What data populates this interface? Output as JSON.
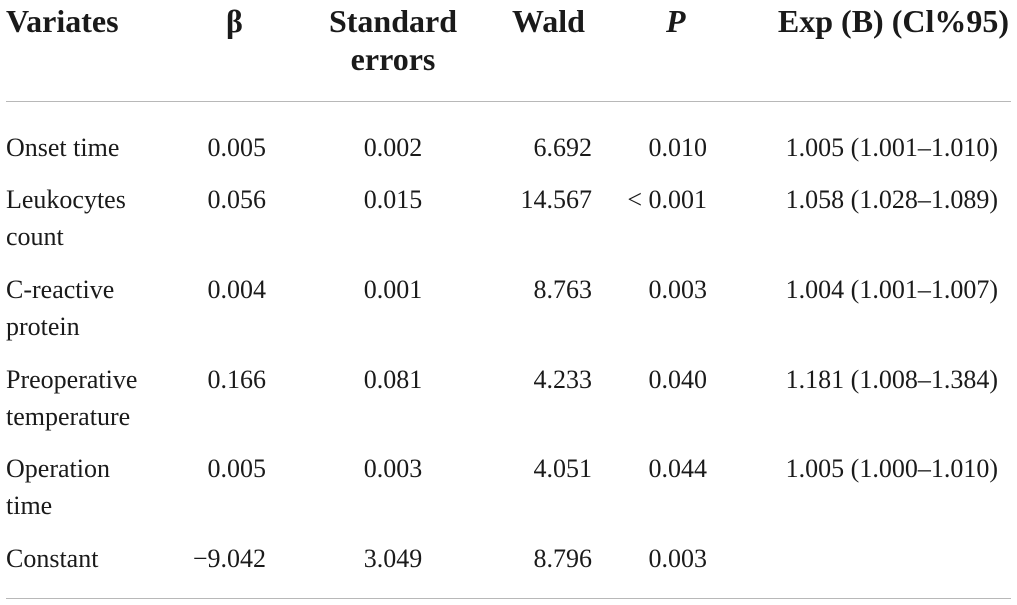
{
  "columns": {
    "variates": "Variates",
    "beta": "β",
    "se_line1": "Standard",
    "se_line2": "errors",
    "wald": "Wald",
    "p": "P",
    "exp": "Exp (B) (Cl%95)"
  },
  "rows": [
    {
      "variate": "Onset time",
      "beta": "0.005",
      "se": "0.002",
      "wald": "6.692",
      "p": "0.010",
      "exp": "1.005 (1.001–1.010)"
    },
    {
      "variate": "Leukocytes count",
      "beta": "0.056",
      "se": "0.015",
      "wald": "14.567",
      "p": "< 0.001",
      "exp": "1.058 (1.028–1.089)"
    },
    {
      "variate": "C-reactive protein",
      "beta": "0.004",
      "se": "0.001",
      "wald": "8.763",
      "p": "0.003",
      "exp": "1.004 (1.001–1.007)"
    },
    {
      "variate": "Preoperative temperature",
      "beta": "0.166",
      "se": "0.081",
      "wald": "4.233",
      "p": "0.040",
      "exp": "1.181 (1.008–1.384)"
    },
    {
      "variate": "Operation time",
      "beta": "0.005",
      "se": "0.003",
      "wald": "4.051",
      "p": "0.044",
      "exp": "1.005 (1.000–1.010)"
    },
    {
      "variate": "Constant",
      "beta": "−9.042",
      "se": "3.049",
      "wald": "8.796",
      "p": "0.003",
      "exp": ""
    }
  ]
}
